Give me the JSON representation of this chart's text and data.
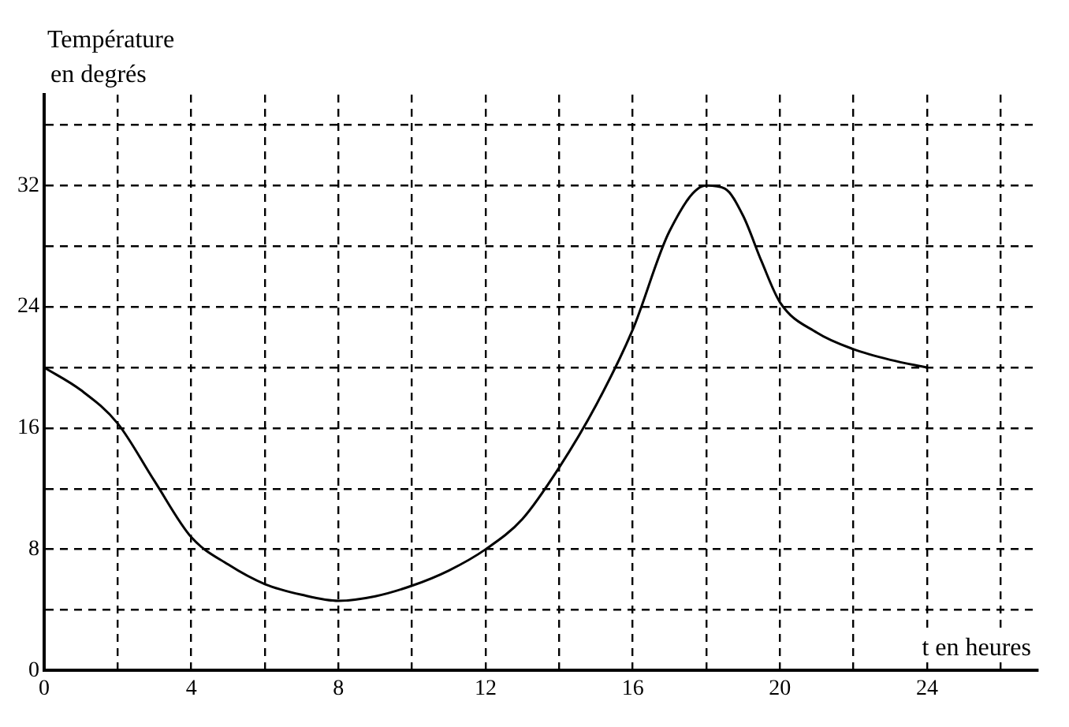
{
  "chart_data": {
    "type": "line",
    "xlabel": "t en heures",
    "ylabel": "Température en degrés",
    "x": [
      0,
      1,
      2,
      3,
      4,
      5,
      6,
      7,
      8,
      9,
      10,
      11,
      12,
      13,
      14,
      15,
      16,
      17,
      18,
      18.5,
      19,
      19.5,
      20,
      21,
      22,
      23,
      24
    ],
    "values": [
      20,
      18.5,
      16.3,
      12.5,
      8.8,
      7,
      5.7,
      5,
      4.6,
      4.9,
      5.6,
      6.6,
      8,
      10,
      13.4,
      17.5,
      22.5,
      29,
      32,
      31.8,
      30,
      27,
      24.3,
      22.3,
      21.2,
      20.5,
      20
    ],
    "color": "#000000",
    "xlim": [
      0,
      27
    ],
    "xticks": [
      0,
      {
        "value": 2,
        "label": null
      },
      4,
      {
        "value": 6,
        "label": null
      },
      8,
      {
        "value": 10,
        "label": null
      },
      12,
      {
        "value": 14,
        "label": null
      },
      16,
      {
        "value": 18,
        "label": null
      },
      20,
      {
        "value": 22,
        "label": null
      },
      24,
      {
        "value": 26,
        "label": null
      }
    ],
    "ylim": [
      0,
      38
    ],
    "yticks": [
      0,
      {
        "value": 4,
        "label": null
      },
      8,
      {
        "value": 12,
        "label": null
      },
      16,
      {
        "value": 20,
        "label": null
      },
      24,
      {
        "value": 28,
        "label": null
      },
      32,
      {
        "value": 36,
        "label": null
      }
    ],
    "grid": true,
    "marker": "none",
    "line_style": "solid"
  }
}
